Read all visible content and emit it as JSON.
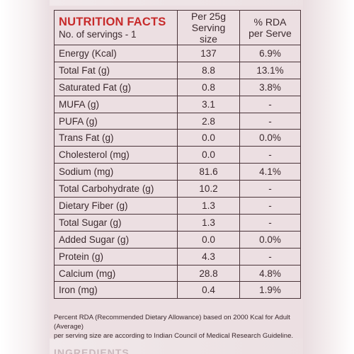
{
  "header": {
    "title": "NUTRITION FACTS",
    "servings": "No. of servings - 1",
    "col1_line1": "Per 25g",
    "col1_line2": "Serving size",
    "col2_line1": "% RDA",
    "col2_line2": "per Serve"
  },
  "rows": [
    {
      "name": "Energy (Kcal)",
      "value": "137",
      "rda": "6.9%"
    },
    {
      "name": "Total Fat (g)",
      "value": "8.8",
      "rda": "13.1%"
    },
    {
      "name": "Saturated Fat (g)",
      "value": "0.8",
      "rda": "3.8%"
    },
    {
      "name": "MUFA (g)",
      "value": "3.1",
      "rda": "-"
    },
    {
      "name": "PUFA (g)",
      "value": "2.8",
      "rda": "-"
    },
    {
      "name": "Trans Fat (g)",
      "value": "0.0",
      "rda": "0.0%"
    },
    {
      "name": "Cholesterol (mg)",
      "value": "0.0",
      "rda": "-"
    },
    {
      "name": "Sodium (mg)",
      "value": "81.6",
      "rda": "4.1%"
    },
    {
      "name": "Total Carbohydrate (g)",
      "value": "10.2",
      "rda": "-"
    },
    {
      "name": "Dietary Fiber (g)",
      "value": "1.3",
      "rda": "-"
    },
    {
      "name": "Total Sugar (g)",
      "value": "1.3",
      "rda": "-"
    },
    {
      "name": "Added Sugar (g)",
      "value": "0.0",
      "rda": "0.0%"
    },
    {
      "name": "Protein (g)",
      "value": "4.3",
      "rda": "-"
    },
    {
      "name": "Calcium (mg)",
      "value": "28.8",
      "rda": "4.8%"
    },
    {
      "name": "Iron (mg)",
      "value": "0.4",
      "rda": "1.9%"
    }
  ],
  "footnote": {
    "line1": "Percent RDA (Recommended Dietary Allowance) based on 2000 Kcal for Adult (Average)",
    "line2": "per serving size are according to Indian Council of Medical Research Guideline."
  },
  "next_section": "INGREDIENTS"
}
